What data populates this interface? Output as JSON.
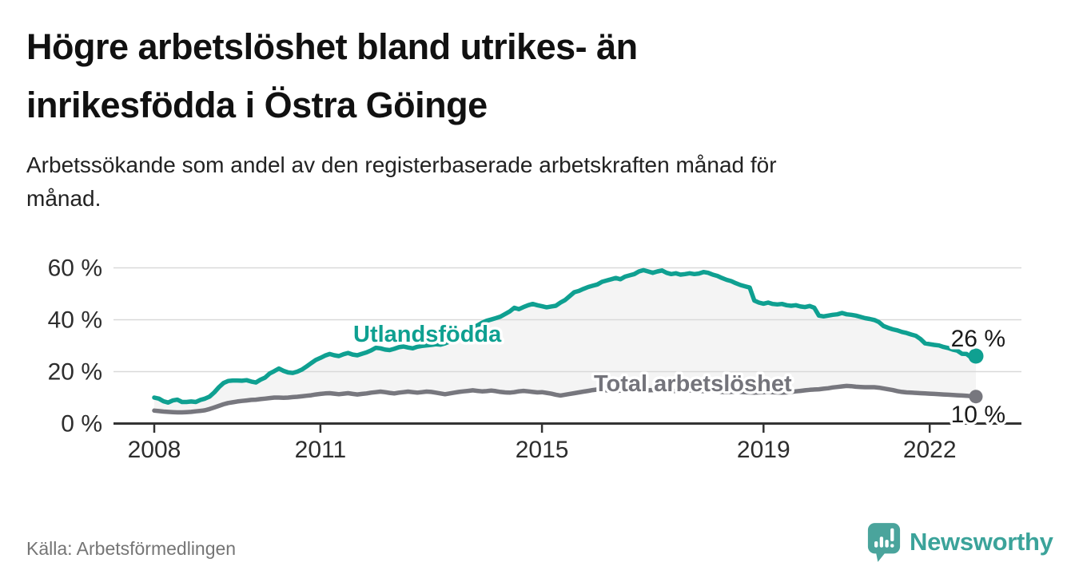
{
  "page": {
    "title_lines": [
      "Högre arbetslöshet bland utrikes- än",
      "inrikesfödda i Östra Göinge"
    ],
    "subtitle_lines": [
      "Arbetssökande som andel av den registerbaserade arbetskraften månad för",
      "månad."
    ],
    "source": "Källa: Arbetsförmedlingen",
    "logo_text": "Newsworthy"
  },
  "colors": {
    "accent_teal": "#0fa091",
    "line_gray": "#77777e",
    "band_fill": "#f4f4f4",
    "grid": "#d9d9d9",
    "axis": "#333333",
    "title_text": "#111111",
    "subtitle_text": "#222222",
    "source_text": "#757575",
    "logo_teal": "#4aa49c"
  },
  "chart_data": {
    "type": "line",
    "title": "Högre arbetslöshet bland utrikes- än inrikesfödda i Östra Göinge",
    "subtitle": "Arbetssökande som andel av den registerbaserade arbetskraften månad för månad.",
    "unit": "%",
    "frequency": "monthly",
    "x_start": "2008-01",
    "x_end": "2022-11",
    "xlabel": "",
    "ylabel": "",
    "ylim": [
      0,
      62
    ],
    "grid": true,
    "band_fill_between_series": true,
    "legend_position": "inline-labels",
    "xtick_labels": [
      "2008",
      "2011",
      "2015",
      "2019",
      "2022"
    ],
    "xtick_years": [
      2008,
      2011,
      2015,
      2019,
      2022
    ],
    "ytick_labels": [
      "0 %",
      "20 %",
      "40 %",
      "60 %"
    ],
    "ytick_values": [
      0,
      20,
      40,
      60
    ],
    "series": [
      {
        "name": "Utlandsfödda",
        "color": "#0fa091",
        "end_label": "26 %",
        "end_value": 26,
        "values": [
          10.0,
          9.6,
          8.6,
          8.1,
          8.9,
          9.2,
          8.3,
          8.3,
          8.5,
          8.3,
          9.1,
          9.6,
          10.4,
          12.0,
          14.0,
          15.6,
          16.4,
          16.6,
          16.6,
          16.5,
          16.7,
          16.2,
          15.8,
          16.9,
          17.7,
          19.3,
          20.2,
          21.2,
          20.3,
          19.7,
          19.5,
          20.0,
          20.8,
          22.0,
          23.3,
          24.5,
          25.3,
          26.2,
          26.8,
          26.3,
          26.0,
          26.7,
          27.2,
          26.6,
          26.3,
          26.9,
          27.4,
          28.2,
          29.2,
          29.0,
          28.5,
          28.3,
          28.8,
          29.4,
          29.7,
          29.3,
          29.0,
          29.6,
          29.9,
          30.1,
          30.3,
          30.6,
          30.4,
          30.9,
          31.6,
          32.6,
          33.6,
          34.6,
          35.7,
          36.7,
          37.8,
          38.8,
          39.6,
          40.1,
          40.6,
          41.2,
          42.2,
          43.2,
          44.6,
          44.1,
          44.9,
          45.6,
          46.1,
          45.6,
          45.2,
          44.8,
          45.1,
          45.4,
          46.6,
          47.6,
          49.1,
          50.6,
          51.1,
          51.9,
          52.6,
          53.1,
          53.6,
          54.6,
          55.1,
          55.6,
          56.1,
          55.6,
          56.6,
          57.1,
          57.6,
          58.6,
          59.1,
          58.6,
          58.1,
          58.6,
          59.0,
          58.1,
          57.6,
          57.9,
          57.4,
          57.6,
          57.9,
          57.6,
          57.8,
          58.4,
          58.1,
          57.4,
          56.9,
          56.1,
          55.4,
          54.9,
          54.1,
          53.4,
          52.9,
          52.4,
          47.4,
          46.6,
          46.2,
          46.6,
          46.1,
          45.9,
          46.1,
          45.6,
          45.4,
          45.6,
          45.1,
          44.9,
          45.3,
          44.6,
          41.6,
          41.3,
          41.6,
          41.9,
          42.1,
          42.6,
          42.1,
          41.9,
          41.6,
          41.1,
          40.6,
          40.3,
          39.9,
          39.1,
          37.6,
          36.9,
          36.3,
          35.9,
          35.3,
          34.9,
          34.3,
          33.8,
          32.6,
          30.9,
          30.6,
          30.3,
          30.1,
          29.5,
          29.1,
          28.5,
          28.1,
          26.9,
          26.8,
          25.4,
          26.0
        ]
      },
      {
        "name": "Total arbetslöshet",
        "color": "#77777e",
        "end_label": "10 %",
        "end_value": 10,
        "values": [
          5.0,
          4.8,
          4.6,
          4.5,
          4.4,
          4.3,
          4.3,
          4.4,
          4.5,
          4.7,
          4.9,
          5.1,
          5.6,
          6.2,
          6.8,
          7.4,
          7.9,
          8.2,
          8.5,
          8.7,
          8.9,
          9.1,
          9.2,
          9.4,
          9.6,
          9.8,
          10.0,
          10.0,
          9.9,
          10.0,
          10.2,
          10.3,
          10.5,
          10.7,
          10.9,
          11.2,
          11.4,
          11.6,
          11.7,
          11.5,
          11.3,
          11.5,
          11.7,
          11.4,
          11.2,
          11.4,
          11.6,
          11.9,
          12.1,
          12.3,
          12.1,
          11.8,
          11.6,
          11.9,
          12.1,
          12.3,
          12.1,
          11.9,
          12.1,
          12.3,
          12.2,
          11.9,
          11.6,
          11.3,
          11.6,
          11.9,
          12.2,
          12.4,
          12.6,
          12.8,
          12.6,
          12.4,
          12.5,
          12.7,
          12.5,
          12.2,
          12.0,
          11.9,
          12.1,
          12.4,
          12.6,
          12.4,
          12.2,
          12.0,
          12.1,
          11.8,
          11.5,
          11.1,
          10.8,
          11.1,
          11.4,
          11.7,
          12.0,
          12.3,
          12.6,
          12.9,
          13.1,
          13.0,
          12.8,
          12.7,
          12.6,
          12.7,
          12.9,
          13.0,
          13.1,
          13.0,
          12.9,
          12.8,
          12.9,
          13.0,
          12.8,
          12.6,
          12.5,
          12.6,
          12.8,
          12.9,
          12.8,
          12.7,
          12.6,
          12.5,
          12.6,
          12.5,
          12.3,
          12.2,
          12.1,
          12.2,
          12.3,
          12.2,
          12.1,
          12.0,
          11.9,
          12.0,
          12.1,
          12.2,
          12.1,
          12.0,
          11.9,
          12.0,
          12.2,
          12.4,
          12.6,
          12.8,
          13.0,
          13.1,
          13.2,
          13.4,
          13.6,
          13.9,
          14.1,
          14.3,
          14.5,
          14.4,
          14.2,
          14.1,
          14.0,
          14.0,
          14.0,
          13.8,
          13.5,
          13.2,
          12.9,
          12.5,
          12.2,
          12.0,
          11.9,
          11.8,
          11.7,
          11.6,
          11.5,
          11.4,
          11.3,
          11.2,
          11.1,
          11.0,
          10.9,
          10.8,
          10.7,
          10.5,
          10.4
        ]
      }
    ]
  }
}
